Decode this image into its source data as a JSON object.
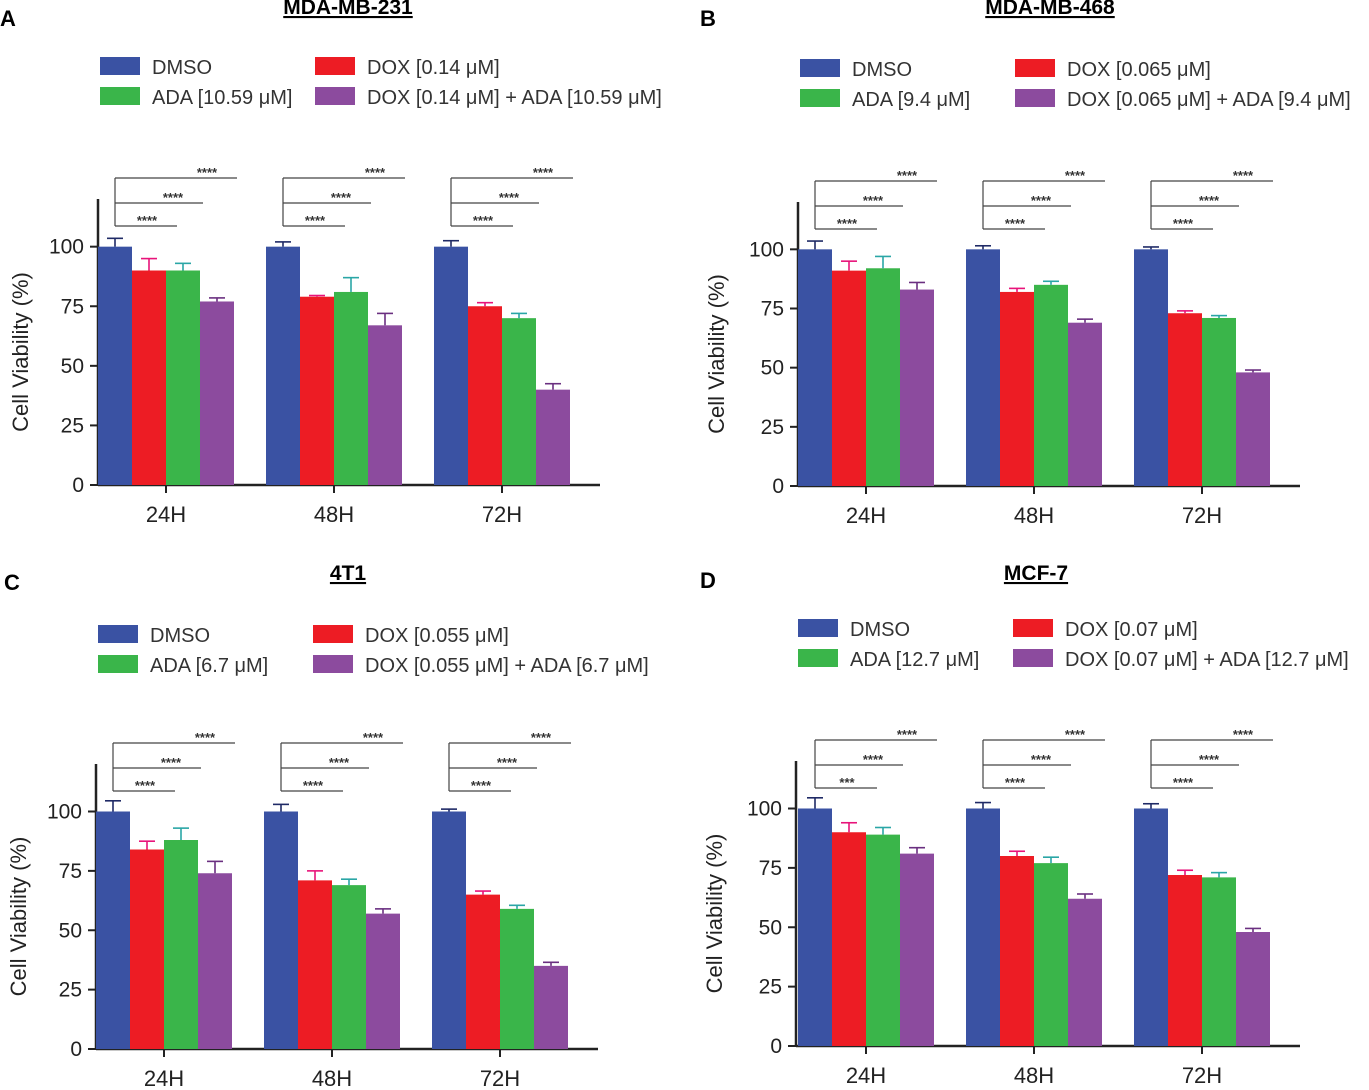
{
  "chart_data": [
    {
      "type": "bar",
      "panel": "A",
      "title": "MDA-MB-231",
      "xlabel": "",
      "ylabel": "Cell Viability (%)",
      "ylim": [
        0,
        120
      ],
      "yticks": [
        0,
        25,
        50,
        75,
        100
      ],
      "categories": [
        "24H",
        "48H",
        "72H"
      ],
      "series": [
        {
          "name": "DMSO",
          "color": "#3a52a3",
          "values": [
            100,
            100,
            100
          ],
          "errors": [
            3.5,
            2,
            2.5
          ]
        },
        {
          "name": "ADA [10.59 μM]",
          "color": "#3ab54a",
          "values": [
            90,
            81,
            70
          ],
          "errors": [
            3,
            6,
            2
          ]
        },
        {
          "name": "DOX [0.14 μM]",
          "color": "#ed1c24",
          "values": [
            90,
            79,
            75
          ],
          "errors": [
            5,
            0.5,
            1.5
          ]
        },
        {
          "name": "DOX [0.14 μM] + ADA [10.59 μM]",
          "color": "#8c4b9e",
          "values": [
            77,
            67,
            40
          ],
          "errors": [
            1.5,
            5,
            2.5
          ]
        }
      ],
      "significance": [
        "****",
        "****",
        "****",
        "****",
        "****",
        "****",
        "****",
        "****",
        "****"
      ],
      "legend_location": "top"
    },
    {
      "type": "bar",
      "panel": "B",
      "title": "MDA-MB-468",
      "xlabel": "",
      "ylabel": "Cell Viability (%)",
      "ylim": [
        0,
        120
      ],
      "yticks": [
        0,
        25,
        50,
        75,
        100
      ],
      "categories": [
        "24H",
        "48H",
        "72H"
      ],
      "series": [
        {
          "name": "DMSO",
          "color": "#3a52a3",
          "values": [
            100,
            100,
            100
          ],
          "errors": [
            3.5,
            1.5,
            1
          ]
        },
        {
          "name": "ADA [9.4 μM]",
          "color": "#3ab54a",
          "values": [
            92,
            85,
            71
          ],
          "errors": [
            5,
            1.5,
            1
          ]
        },
        {
          "name": "DOX [0.065 μM]",
          "color": "#ed1c24",
          "values": [
            91,
            82,
            73
          ],
          "errors": [
            4,
            1.5,
            1
          ]
        },
        {
          "name": "DOX [0.065 μM] + ADA [9.4 μM]",
          "color": "#8c4b9e",
          "values": [
            83,
            69,
            48
          ],
          "errors": [
            3,
            1.5,
            1
          ]
        }
      ],
      "significance": [
        "****",
        "****",
        "****",
        "****",
        "****",
        "****",
        "****",
        "****",
        "****"
      ],
      "legend_location": "top"
    },
    {
      "type": "bar",
      "panel": "C",
      "title": "4T1",
      "xlabel": "",
      "ylabel": "Cell Viability (%)",
      "ylim": [
        0,
        120
      ],
      "yticks": [
        0,
        25,
        50,
        75,
        100
      ],
      "categories": [
        "24H",
        "48H",
        "72H"
      ],
      "series": [
        {
          "name": "DMSO",
          "color": "#3a52a3",
          "values": [
            100,
            100,
            100
          ],
          "errors": [
            4.5,
            3,
            1
          ]
        },
        {
          "name": "ADA [6.7 μM]",
          "color": "#3ab54a",
          "values": [
            88,
            69,
            59
          ],
          "errors": [
            5,
            2.5,
            1.5
          ]
        },
        {
          "name": "DOX [0.055 μM]",
          "color": "#ed1c24",
          "values": [
            84,
            71,
            65
          ],
          "errors": [
            3.5,
            4,
            1.5
          ]
        },
        {
          "name": "DOX [0.055 μM] + ADA [6.7 μM]",
          "color": "#8c4b9e",
          "values": [
            74,
            57,
            35
          ],
          "errors": [
            5,
            2,
            1.5
          ]
        }
      ],
      "significance": [
        "****",
        "****",
        "****",
        "****",
        "****",
        "****",
        "****",
        "****",
        "****"
      ],
      "legend_location": "top"
    },
    {
      "type": "bar",
      "panel": "D",
      "title": "MCF-7",
      "xlabel": "",
      "ylabel": "Cell Viability (%)",
      "ylim": [
        0,
        120
      ],
      "yticks": [
        0,
        25,
        50,
        75,
        100
      ],
      "categories": [
        "24H",
        "48H",
        "72H"
      ],
      "series": [
        {
          "name": "DMSO",
          "color": "#3a52a3",
          "values": [
            100,
            100,
            100
          ],
          "errors": [
            4.5,
            2.5,
            2
          ]
        },
        {
          "name": "ADA [12.7 μM]",
          "color": "#3ab54a",
          "values": [
            89,
            77,
            71
          ],
          "errors": [
            3,
            2.5,
            2
          ]
        },
        {
          "name": "DOX [0.07 μM]",
          "color": "#ed1c24",
          "values": [
            90,
            80,
            72
          ],
          "errors": [
            4,
            2,
            2
          ]
        },
        {
          "name": "DOX [0.07 μM] + ADA [12.7 μM]",
          "color": "#8c4b9e",
          "values": [
            81,
            62,
            48
          ],
          "errors": [
            2.5,
            2,
            1.5
          ]
        }
      ],
      "significance": [
        "***",
        "****",
        "****",
        "****",
        "****",
        "****",
        "****",
        "****",
        "****"
      ],
      "legend_location": "top"
    }
  ]
}
